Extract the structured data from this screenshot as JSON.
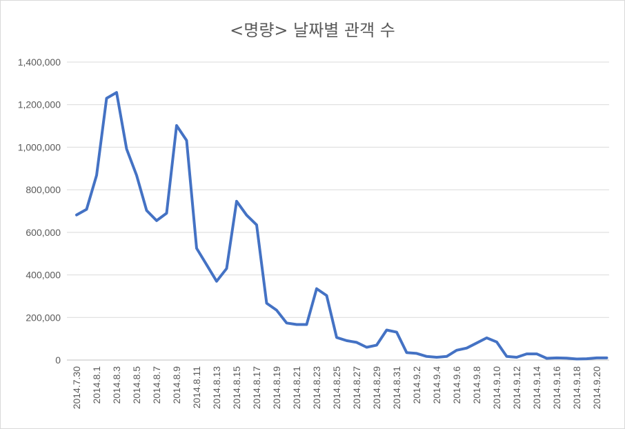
{
  "chart_data": {
    "type": "line",
    "title": "<명량> 날짜별 관객 수",
    "xlabel": "",
    "ylabel": "",
    "ylim": [
      0,
      1400000
    ],
    "yticks": [
      0,
      200000,
      400000,
      600000,
      800000,
      1000000,
      1200000,
      1400000
    ],
    "ytick_labels": [
      "0",
      "200,000",
      "400,000",
      "600,000",
      "800,000",
      "1,000,000",
      "1,200,000",
      "1,400,000"
    ],
    "grid": true,
    "legend": "none",
    "categories": [
      "2014.7.30",
      "2014.7.31",
      "2014.8.1",
      "2014.8.2",
      "2014.8.3",
      "2014.8.4",
      "2014.8.5",
      "2014.8.6",
      "2014.8.7",
      "2014.8.8",
      "2014.8.9",
      "2014.8.10",
      "2014.8.11",
      "2014.8.12",
      "2014.8.13",
      "2014.8.14",
      "2014.8.15",
      "2014.8.16",
      "2014.8.17",
      "2014.8.18",
      "2014.8.19",
      "2014.8.20",
      "2014.8.21",
      "2014.8.22",
      "2014.8.23",
      "2014.8.24",
      "2014.8.25",
      "2014.8.26",
      "2014.8.27",
      "2014.8.28",
      "2014.8.29",
      "2014.8.30",
      "2014.8.31",
      "2014.9.1",
      "2014.9.2",
      "2014.9.3",
      "2014.9.4",
      "2014.9.5",
      "2014.9.6",
      "2014.9.7",
      "2014.9.8",
      "2014.9.9",
      "2014.9.10",
      "2014.9.11",
      "2014.9.12",
      "2014.9.13",
      "2014.9.14",
      "2014.9.15",
      "2014.9.16",
      "2014.9.17",
      "2014.9.18",
      "2014.9.19",
      "2014.9.20",
      "2014.9.21"
    ],
    "xtick_labels_shown": [
      "2014.7.30",
      "2014.8.1",
      "2014.8.3",
      "2014.8.5",
      "2014.8.7",
      "2014.8.9",
      "2014.8.11",
      "2014.8.13",
      "2014.8.15",
      "2014.8.17",
      "2014.8.19",
      "2014.8.21",
      "2014.8.23",
      "2014.8.25",
      "2014.8.27",
      "2014.8.29",
      "2014.8.31",
      "2014.9.2",
      "2014.9.4",
      "2014.9.6",
      "2014.9.8",
      "2014.9.10",
      "2014.9.12",
      "2014.9.14",
      "2014.9.16",
      "2014.9.18",
      "2014.9.20"
    ],
    "series": [
      {
        "color": "#4472c4",
        "values": [
          682000,
          708000,
          868000,
          1230000,
          1257000,
          992000,
          868000,
          703000,
          655000,
          690000,
          1102000,
          1032000,
          525000,
          448000,
          370000,
          430000,
          746000,
          681000,
          635000,
          267000,
          234000,
          174000,
          167000,
          167000,
          335000,
          303000,
          106000,
          91000,
          83000,
          60000,
          70000,
          141000,
          131000,
          35000,
          31000,
          17000,
          13000,
          17000,
          46000,
          56000,
          80000,
          104000,
          85000,
          17000,
          13000,
          29000,
          29000,
          8000,
          10000,
          9000,
          5000,
          6000,
          10000,
          10000
        ]
      }
    ]
  }
}
